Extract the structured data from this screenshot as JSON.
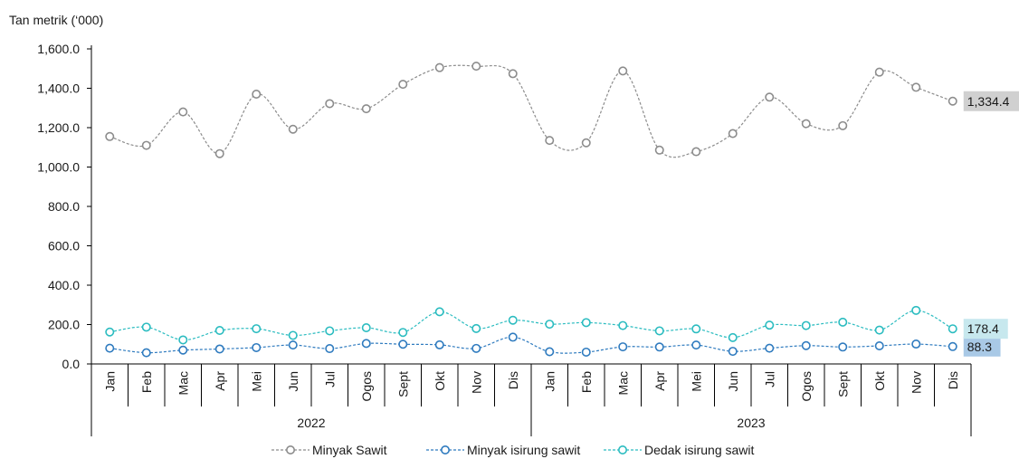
{
  "chart_data": {
    "type": "line",
    "ylabel": "Tan metrik (‘000)",
    "ylim": [
      0,
      1600
    ],
    "yticks": [
      "0.0",
      "200.0",
      "400.0",
      "600.0",
      "800.0",
      "1,000.0",
      "1,200.0",
      "1,400.0",
      "1,600.0"
    ],
    "grid": false,
    "legend_position": "bottom",
    "categories": [
      "Jan",
      "Feb",
      "Mac",
      "Apr",
      "Mei",
      "Jun",
      "Jul",
      "Ogos",
      "Sept",
      "Okt",
      "Nov",
      "Dis",
      "Jan",
      "Feb",
      "Mac",
      "Apr",
      "Mei",
      "Jun",
      "Jul",
      "Ogos",
      "Sept",
      "Okt",
      "Nov",
      "Dis"
    ],
    "years": [
      {
        "label": "2022",
        "start": 0,
        "end": 11
      },
      {
        "label": "2023",
        "start": 12,
        "end": 23
      }
    ],
    "series": [
      {
        "name": "Minyak Sawit",
        "color": "#8c8c8c",
        "values": [
          1155,
          1110,
          1280,
          1068,
          1370,
          1192,
          1322,
          1296,
          1420,
          1505,
          1512,
          1474,
          1135,
          1123,
          1488,
          1086,
          1078,
          1170,
          1355,
          1220,
          1210,
          1482,
          1405,
          1334.4
        ],
        "end_label": "1,334.4",
        "end_label_bg": "#d0d0d0",
        "end_label_color": "#333333"
      },
      {
        "name": "Minyak isirung sawit",
        "color": "#2f7bbf",
        "values": [
          80,
          57,
          70,
          76,
          83,
          96,
          78,
          104,
          100,
          97,
          79,
          136,
          62,
          60,
          87,
          86,
          96,
          64,
          80,
          93,
          86,
          92,
          101,
          88.3
        ],
        "end_label": "88.3",
        "end_label_bg": "#a9c9e6",
        "end_label_color": "#1a1a1a"
      },
      {
        "name": "Dedak isirung sawit",
        "color": "#2bbcc0",
        "values": [
          162,
          187,
          122,
          170,
          179,
          145,
          168,
          184,
          160,
          265,
          180,
          222,
          202,
          210,
          195,
          168,
          178,
          134,
          197,
          195,
          212,
          172,
          272,
          178.4
        ],
        "end_label": "178.4",
        "end_label_bg": "#c7e8ee",
        "end_label_color": "#555555"
      }
    ]
  }
}
